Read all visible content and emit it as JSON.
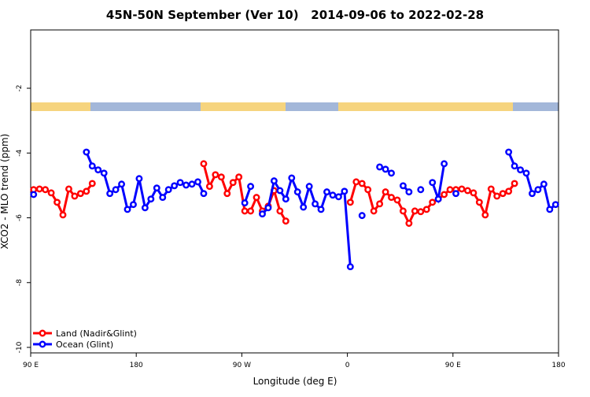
{
  "chart_data": {
    "type": "line",
    "title": "45N-50N September (Ver 10)   2014-09-06 to 2022-02-28",
    "xlabel": "Longitude (deg E)",
    "ylabel": "XCO2 - MLO trend (ppm)",
    "xlim": [
      90,
      540
    ],
    "ylim": [
      -10.17,
      -0.2
    ],
    "xticks": [
      {
        "value": 90,
        "label": "90 E"
      },
      180,
      {
        "value": 270,
        "label": "90 W"
      },
      {
        "value": 360,
        "label": "0"
      },
      {
        "value": 450,
        "label": "90 E"
      },
      {
        "value": 540,
        "label": "180"
      }
    ],
    "yticks": [
      -2,
      -4,
      -6,
      -8,
      -10
    ],
    "legend": "bottom-left",
    "x": [
      92.5,
      97.5,
      102.5,
      107.5,
      112.5,
      117.5,
      122.5,
      127.5,
      132.5,
      137.5,
      142.5,
      147.5,
      152.5,
      157.5,
      162.5,
      167.5,
      172.5,
      177.5,
      182.5,
      187.5,
      192.5,
      197.5,
      202.5,
      207.5,
      212.5,
      217.5,
      222.5,
      227.5,
      232.5,
      237.5,
      242.5,
      247.5,
      252.5,
      257.5,
      262.5,
      267.5,
      272.5,
      277.5,
      282.5,
      287.5,
      292.5,
      297.5,
      302.5,
      307.5,
      312.5,
      317.5,
      322.5,
      327.5,
      332.5,
      337.5,
      342.5,
      347.5,
      352.5,
      357.5,
      362.5,
      367.5,
      372.5,
      377.5,
      382.5,
      387.5,
      392.5,
      397.5,
      402.5,
      407.5,
      412.5,
      417.5,
      422.5,
      427.5,
      432.5,
      437.5,
      442.5,
      447.5,
      452.5,
      457.5,
      462.5,
      467.5,
      472.5,
      477.5,
      482.5,
      487.5,
      492.5,
      497.5,
      502.5,
      507.5,
      512.5,
      517.5,
      522.5,
      527.5,
      532.5,
      537.5
    ],
    "series": [
      {
        "name": "Land (Nadir&Glint)",
        "color": "#ff0000",
        "values": [
          -5.13,
          -5.11,
          -5.13,
          -5.23,
          -5.52,
          -5.91,
          -5.11,
          -5.33,
          -5.25,
          -5.18,
          -4.94,
          null,
          null,
          null,
          null,
          null,
          null,
          null,
          null,
          null,
          null,
          null,
          null,
          null,
          null,
          null,
          null,
          null,
          null,
          -4.33,
          -5.03,
          -4.67,
          -4.74,
          -5.25,
          -4.91,
          -4.74,
          -5.79,
          -5.79,
          -5.37,
          -5.79,
          -5.64,
          -5.16,
          -5.79,
          -6.1,
          null,
          null,
          null,
          null,
          null,
          null,
          null,
          null,
          null,
          null,
          -5.52,
          -4.89,
          -4.94,
          -5.13,
          -5.79,
          -5.57,
          -5.2,
          -5.37,
          -5.45,
          -5.79,
          -6.17,
          -5.79,
          -5.81,
          -5.74,
          -5.52,
          -5.42,
          -5.28,
          -5.13,
          -5.13,
          -5.11,
          -5.16,
          -5.23,
          -5.52,
          -5.91,
          -5.11,
          -5.33,
          -5.25,
          -5.18,
          -4.94,
          null,
          null,
          null,
          null,
          null,
          null,
          null
        ]
      },
      {
        "name": "Ocean (Glint)",
        "color": "#0000ff",
        "values": [
          -5.28,
          null,
          null,
          null,
          null,
          null,
          null,
          null,
          null,
          -3.97,
          -4.4,
          -4.52,
          -4.62,
          -5.25,
          -5.13,
          -4.96,
          -5.74,
          -5.59,
          -4.79,
          -5.69,
          -5.42,
          -5.08,
          -5.37,
          -5.13,
          -5.01,
          -4.91,
          -4.99,
          -4.96,
          -4.89,
          -5.25,
          null,
          null,
          null,
          null,
          null,
          null,
          -5.54,
          -5.03,
          null,
          -5.88,
          -5.69,
          -4.86,
          -5.16,
          -5.42,
          -4.77,
          -5.2,
          -5.67,
          -5.03,
          -5.57,
          -5.74,
          -5.2,
          -5.3,
          -5.35,
          -5.18,
          -7.51,
          null,
          -5.93,
          null,
          null,
          -4.43,
          -4.5,
          -4.62,
          null,
          -5.01,
          -5.2,
          null,
          -5.13,
          null,
          -4.91,
          -5.42,
          -4.33,
          null,
          -5.25,
          null,
          null,
          null,
          null,
          null,
          null,
          null,
          null,
          -3.97,
          -4.4,
          -4.52,
          -4.62,
          -5.25,
          -5.13,
          -4.96,
          -5.74,
          -5.59
        ]
      }
    ]
  }
}
